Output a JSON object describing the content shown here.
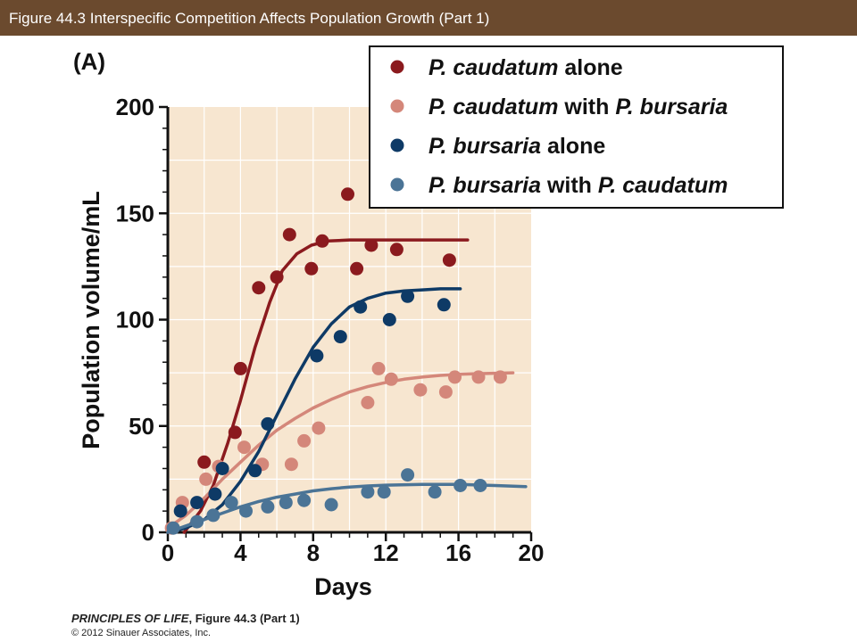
{
  "header": {
    "title": "Figure 44.3  Interspecific Competition Affects Population Growth (Part 1)"
  },
  "footer": {
    "book": "PRINCIPLES OF LIFE",
    "figure": ", Figure 44.3 (Part 1)",
    "copyright": "© 2012 Sinauer Associates, Inc."
  },
  "colors": {
    "header_bg": "#6b4a2e",
    "plot_bg": "#f7e6d0"
  },
  "chart_data": {
    "type": "scatter",
    "panel_label": "(A)",
    "xlabel": "Days",
    "ylabel": "Population volume/mL",
    "xlim": [
      0,
      20
    ],
    "ylim": [
      0,
      200
    ],
    "xticks": [
      0,
      4,
      8,
      12,
      16,
      20
    ],
    "yticks": [
      0,
      50,
      100,
      150,
      200
    ],
    "grid": true,
    "legend_position": "top-right",
    "series": [
      {
        "name": "P. caudatum alone",
        "legend_parts": [
          {
            "t": "P. caudatum",
            "i": true
          },
          {
            "t": " alone",
            "i": false
          }
        ],
        "color": "#8b1a1e",
        "points": [
          [
            2,
            33
          ],
          [
            3.7,
            47
          ],
          [
            4,
            77
          ],
          [
            5,
            115
          ],
          [
            6,
            120
          ],
          [
            6.7,
            140
          ],
          [
            7.9,
            124
          ],
          [
            8.5,
            137
          ],
          [
            9.9,
            159
          ],
          [
            10.4,
            124
          ],
          [
            11.2,
            135
          ],
          [
            12.6,
            133
          ],
          [
            15.5,
            128
          ]
        ],
        "fit": [
          [
            0.9,
            0
          ],
          [
            1.8,
            10
          ],
          [
            2.5,
            22
          ],
          [
            3.3,
            42
          ],
          [
            4,
            62
          ],
          [
            4.8,
            87
          ],
          [
            5.6,
            108
          ],
          [
            6.3,
            123
          ],
          [
            7.1,
            131
          ],
          [
            7.9,
            135
          ],
          [
            8.8,
            137
          ],
          [
            10,
            137.5
          ],
          [
            12,
            137.5
          ],
          [
            16.5,
            137.5
          ]
        ]
      },
      {
        "name": "P. caudatum with P. bursaria",
        "legend_parts": [
          {
            "t": "P. caudatum",
            "i": true
          },
          {
            "t": " with ",
            "i": false
          },
          {
            "t": "P. bursaria",
            "i": true
          }
        ],
        "color": "#d4877a",
        "points": [
          [
            0.2,
            2
          ],
          [
            0.8,
            14
          ],
          [
            2.1,
            25
          ],
          [
            2.8,
            31
          ],
          [
            4.2,
            40
          ],
          [
            5.2,
            32
          ],
          [
            6.8,
            32
          ],
          [
            7.5,
            43
          ],
          [
            8.3,
            49
          ],
          [
            11,
            61
          ],
          [
            11.6,
            77
          ],
          [
            12.3,
            72
          ],
          [
            13.9,
            67
          ],
          [
            15.3,
            66
          ],
          [
            15.8,
            73
          ],
          [
            17.1,
            73
          ],
          [
            18.3,
            73
          ]
        ],
        "fit": [
          [
            0,
            2
          ],
          [
            1,
            8
          ],
          [
            2,
            16
          ],
          [
            3,
            25
          ],
          [
            4,
            33
          ],
          [
            5,
            41
          ],
          [
            6,
            48
          ],
          [
            7,
            53.5
          ],
          [
            8,
            58.5
          ],
          [
            9,
            62.5
          ],
          [
            10,
            66
          ],
          [
            11,
            68.5
          ],
          [
            12,
            70.5
          ],
          [
            13,
            72
          ],
          [
            14,
            73
          ],
          [
            15,
            73.8
          ],
          [
            16,
            74.3
          ],
          [
            17,
            74.6
          ],
          [
            18,
            74.8
          ],
          [
            19,
            75
          ]
        ]
      },
      {
        "name": "P. bursaria alone",
        "legend_parts": [
          {
            "t": "P. bursaria",
            "i": true
          },
          {
            "t": " alone",
            "i": false
          }
        ],
        "color": "#0e3a66",
        "points": [
          [
            0.7,
            10
          ],
          [
            1.6,
            14
          ],
          [
            2.6,
            18
          ],
          [
            3,
            30
          ],
          [
            4.8,
            29
          ],
          [
            5.5,
            51
          ],
          [
            8.2,
            83
          ],
          [
            9.5,
            92
          ],
          [
            10.6,
            106
          ],
          [
            12.2,
            100
          ],
          [
            13.2,
            111
          ],
          [
            15.2,
            107
          ]
        ],
        "fit": [
          [
            0,
            0
          ],
          [
            1,
            2
          ],
          [
            2,
            6
          ],
          [
            3,
            13
          ],
          [
            4,
            24
          ],
          [
            5,
            38
          ],
          [
            6,
            55
          ],
          [
            7,
            72
          ],
          [
            8,
            87
          ],
          [
            9,
            98
          ],
          [
            10,
            106
          ],
          [
            11,
            110
          ],
          [
            12,
            112.5
          ],
          [
            13,
            113.5
          ],
          [
            14,
            114
          ],
          [
            15,
            114.5
          ],
          [
            16.1,
            114.5
          ]
        ]
      },
      {
        "name": "P. bursaria with P. caudatum",
        "legend_parts": [
          {
            "t": "P. bursaria",
            "i": true
          },
          {
            "t": " with ",
            "i": false
          },
          {
            "t": "P. caudatum",
            "i": true
          }
        ],
        "color": "#4b7496",
        "points": [
          [
            0.3,
            2
          ],
          [
            1.6,
            5
          ],
          [
            2.5,
            8
          ],
          [
            3.5,
            14
          ],
          [
            4.3,
            10
          ],
          [
            5.5,
            12
          ],
          [
            6.5,
            14
          ],
          [
            7.5,
            15
          ],
          [
            9,
            13
          ],
          [
            11,
            19
          ],
          [
            11.9,
            19
          ],
          [
            13.2,
            27
          ],
          [
            14.7,
            19
          ],
          [
            16.1,
            22
          ],
          [
            17.2,
            22
          ]
        ],
        "fit": [
          [
            0,
            0
          ],
          [
            1,
            3
          ],
          [
            2,
            6
          ],
          [
            3,
            9
          ],
          [
            4,
            12
          ],
          [
            5,
            14.5
          ],
          [
            6,
            16.5
          ],
          [
            7,
            18
          ],
          [
            8,
            19.5
          ],
          [
            9,
            20.5
          ],
          [
            10,
            21.3
          ],
          [
            11,
            21.8
          ],
          [
            12,
            22.2
          ],
          [
            14,
            22.5
          ],
          [
            16,
            22.5
          ],
          [
            18,
            22
          ],
          [
            19.7,
            21.5
          ]
        ]
      }
    ]
  }
}
